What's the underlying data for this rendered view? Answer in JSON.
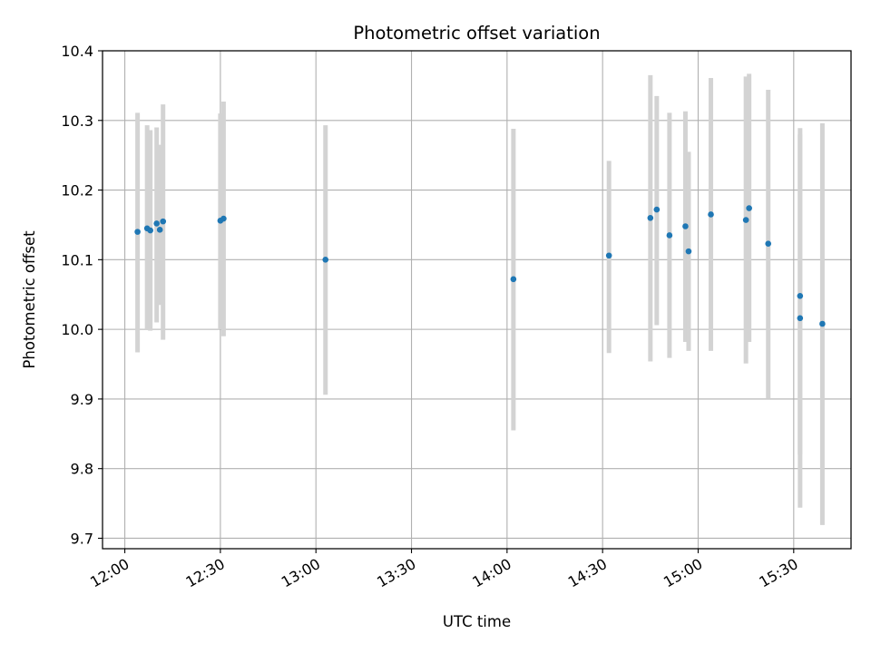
{
  "chart_data": {
    "type": "scatter",
    "title": "Photometric offset variation",
    "xlabel": "UTC time",
    "ylabel": "Photometric offset",
    "xlim": [
      "11:53",
      "15:48"
    ],
    "ylim": [
      9.685,
      10.4
    ],
    "x_ticks": [
      "12:00",
      "12:30",
      "13:00",
      "13:30",
      "14:00",
      "14:30",
      "15:00",
      "15:30"
    ],
    "y_ticks": [
      "9.7",
      "9.8",
      "9.9",
      "10.0",
      "10.1",
      "10.2",
      "10.3",
      "10.4"
    ],
    "grid": true,
    "colors": {
      "point": "#1f77b4",
      "error_bar": "#d3d3d3",
      "grid": "#b0b0b0",
      "axes": "#000000"
    },
    "series": [
      {
        "points": [
          {
            "x": "12:04",
            "y": 10.14,
            "ylow": 9.967,
            "yhigh": 10.311
          },
          {
            "x": "12:07",
            "y": 10.145,
            "ylow": 10.0,
            "yhigh": 10.293
          },
          {
            "x": "12:08",
            "y": 10.142,
            "ylow": 9.998,
            "yhigh": 10.286
          },
          {
            "x": "12:10",
            "y": 10.152,
            "ylow": 10.01,
            "yhigh": 10.29
          },
          {
            "x": "12:11",
            "y": 10.143,
            "ylow": 10.035,
            "yhigh": 10.265
          },
          {
            "x": "12:12",
            "y": 10.155,
            "ylow": 9.985,
            "yhigh": 10.323
          },
          {
            "x": "12:30",
            "y": 10.156,
            "ylow": 10.0,
            "yhigh": 10.31
          },
          {
            "x": "12:31",
            "y": 10.159,
            "ylow": 9.99,
            "yhigh": 10.327
          },
          {
            "x": "13:03",
            "y": 10.1,
            "ylow": 9.906,
            "yhigh": 10.293
          },
          {
            "x": "14:02",
            "y": 10.072,
            "ylow": 9.855,
            "yhigh": 10.288
          },
          {
            "x": "14:32",
            "y": 10.106,
            "ylow": 9.966,
            "yhigh": 10.242
          },
          {
            "x": "14:45",
            "y": 10.16,
            "ylow": 9.954,
            "yhigh": 10.365
          },
          {
            "x": "14:47",
            "y": 10.172,
            "ylow": 10.006,
            "yhigh": 10.335
          },
          {
            "x": "14:51",
            "y": 10.135,
            "ylow": 9.959,
            "yhigh": 10.311
          },
          {
            "x": "14:56",
            "y": 10.148,
            "ylow": 9.982,
            "yhigh": 10.313
          },
          {
            "x": "14:57",
            "y": 10.112,
            "ylow": 9.969,
            "yhigh": 10.255
          },
          {
            "x": "15:04",
            "y": 10.165,
            "ylow": 9.969,
            "yhigh": 10.361
          },
          {
            "x": "15:15",
            "y": 10.157,
            "ylow": 9.951,
            "yhigh": 10.363
          },
          {
            "x": "15:16",
            "y": 10.174,
            "ylow": 9.982,
            "yhigh": 10.367
          },
          {
            "x": "15:22",
            "y": 10.123,
            "ylow": 9.9,
            "yhigh": 10.344
          },
          {
            "x": "15:32",
            "y": 10.048,
            "ylow": 9.82,
            "yhigh": 10.28
          },
          {
            "x": "15:32",
            "y": 10.016,
            "ylow": 9.744,
            "yhigh": 10.289
          },
          {
            "x": "15:39",
            "y": 10.008,
            "ylow": 9.719,
            "yhigh": 10.296
          }
        ]
      }
    ]
  }
}
